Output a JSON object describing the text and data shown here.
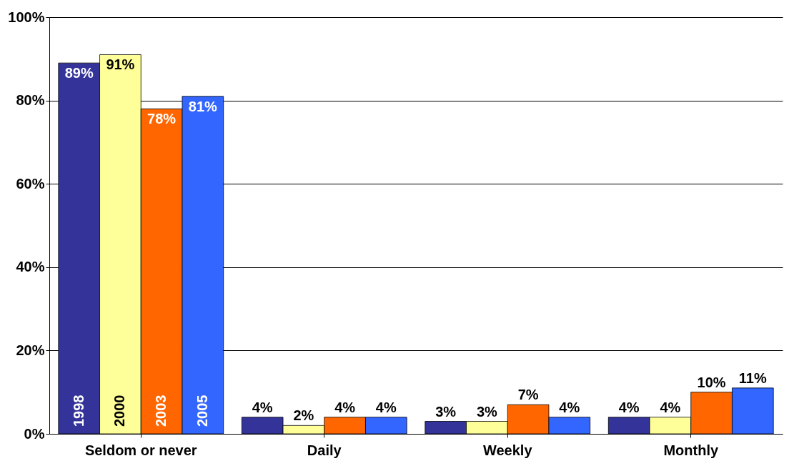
{
  "chart_data": {
    "type": "bar",
    "categories": [
      "Seldom or never",
      "Daily",
      "Weekly",
      "Monthly"
    ],
    "series": [
      {
        "name": "1998",
        "color": "#333399",
        "values": [
          89,
          4,
          3,
          4
        ],
        "value_labels": [
          "89%",
          "4%",
          "3%",
          "4%"
        ]
      },
      {
        "name": "2000",
        "color": "#ffff99",
        "values": [
          91,
          2,
          3,
          4
        ],
        "value_labels": [
          "91%",
          "2%",
          "3%",
          "4%"
        ]
      },
      {
        "name": "2003",
        "color": "#ff6600",
        "values": [
          78,
          4,
          7,
          10
        ],
        "value_labels": [
          "78%",
          "4%",
          "7%",
          "10%"
        ]
      },
      {
        "name": "2005",
        "color": "#3366ff",
        "values": [
          81,
          4,
          4,
          11
        ],
        "value_labels": [
          "81%",
          "4%",
          "4%",
          "11%"
        ]
      }
    ],
    "ylim": [
      0,
      100
    ],
    "yticks": [
      {
        "value": 0,
        "label": "0%"
      },
      {
        "value": 20,
        "label": "20%"
      },
      {
        "value": 40,
        "label": "40%"
      },
      {
        "value": 60,
        "label": "60%"
      },
      {
        "value": 80,
        "label": "80%"
      },
      {
        "value": 100,
        "label": "100%"
      }
    ],
    "grid": "y",
    "legend": false
  }
}
